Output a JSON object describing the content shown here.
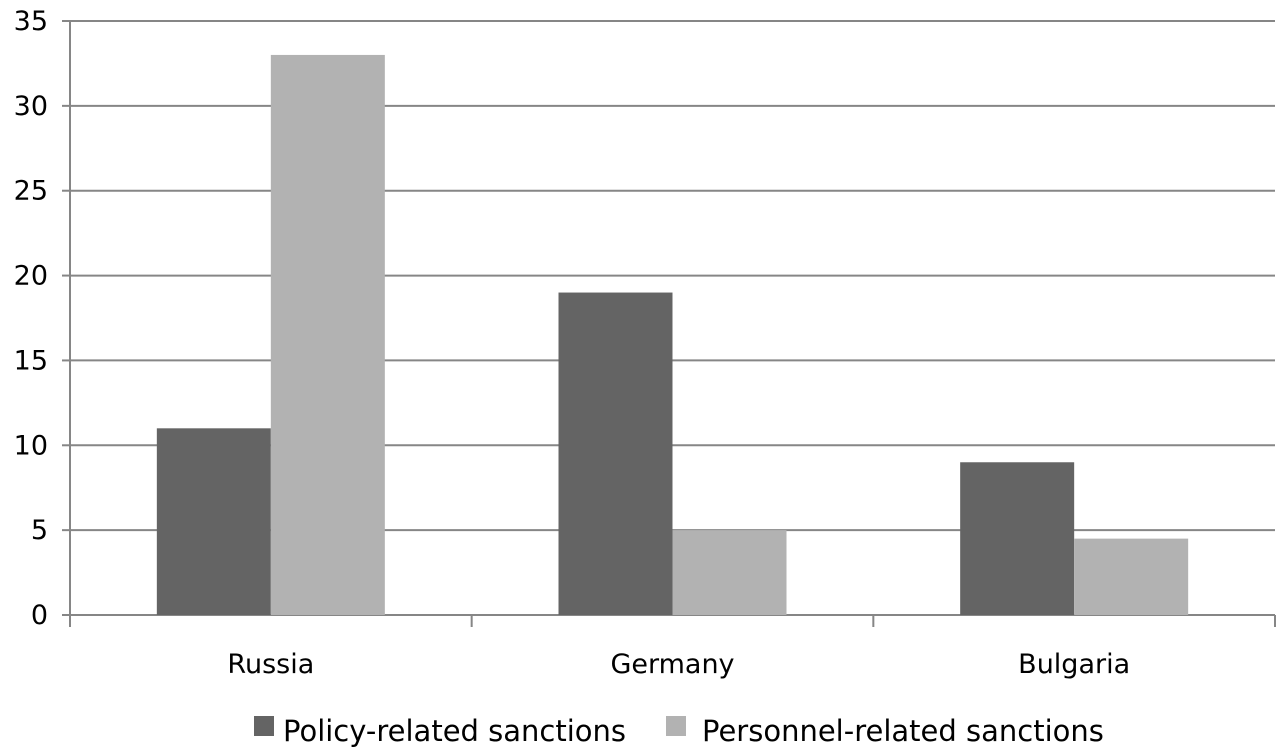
{
  "chart_data": {
    "type": "bar",
    "categories": [
      "Russia",
      "Germany",
      "Bulgaria"
    ],
    "series": [
      {
        "name": "Policy-related sanctions",
        "values": [
          11,
          19,
          9
        ],
        "color": "#646464"
      },
      {
        "name": "Personnel-related sanctions",
        "values": [
          33,
          5,
          4.5
        ],
        "color": "#b2b2b2"
      }
    ],
    "ylim": [
      0,
      35
    ],
    "yticks": [
      "0",
      "5",
      "10",
      "15",
      "20",
      "25",
      "30",
      "35"
    ],
    "grid": true,
    "legend_position": "bottom"
  }
}
